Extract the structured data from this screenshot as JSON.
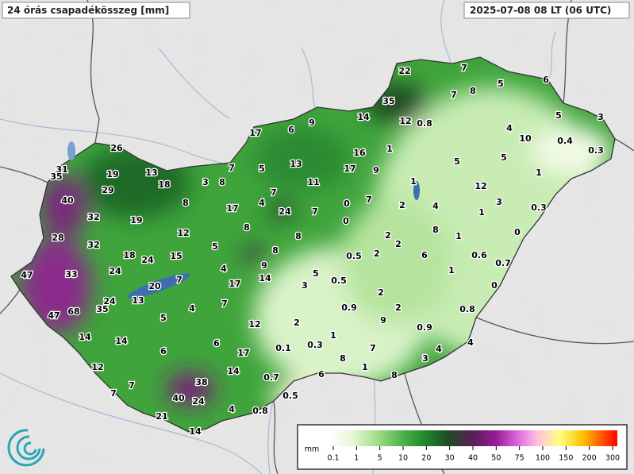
{
  "header": {
    "title": "24 órás csapadékösszeg [mm]",
    "timestamp": "2025-07-08 08 LT (06 UTC)"
  },
  "stations": [
    "22",
    "7",
    "5",
    "6",
    "35",
    "7",
    "8",
    "14",
    "12",
    "0.8",
    "5",
    "3",
    "17",
    "6",
    "9",
    "4",
    "10",
    "26",
    "16",
    "1",
    "0.4",
    "0.3",
    "31",
    "35",
    "19",
    "13",
    "7",
    "5",
    "13",
    "17",
    "9",
    "5",
    "5",
    "1",
    "29",
    "18",
    "3",
    "8",
    "11",
    "1",
    "12",
    "40",
    "8",
    "4",
    "7",
    "24",
    "17",
    "7",
    "0",
    "7",
    "2",
    "4",
    "3",
    "0.3",
    "32",
    "19",
    "0",
    "1",
    "28",
    "12",
    "8",
    "8",
    "2",
    "8",
    "1",
    "0",
    "32",
    "5",
    "2",
    "8",
    "18",
    "24",
    "15",
    "0.5",
    "2",
    "6",
    "0.6",
    "0.7",
    "47",
    "33",
    "24",
    "4",
    "9",
    "5",
    "1",
    "20",
    "7",
    "17",
    "14",
    "3",
    "0.5",
    "2",
    "0",
    "24",
    "13",
    "7",
    "47",
    "68",
    "35",
    "4",
    "0.9",
    "2",
    "0.8",
    "5",
    "2",
    "9",
    "14",
    "14",
    "12",
    "1",
    "0.9",
    "6",
    "6",
    "0.1",
    "0.3",
    "7",
    "4",
    "17",
    "8",
    "4",
    "3",
    "12",
    "14",
    "1",
    "8",
    "7",
    "38",
    "0.7",
    "6",
    "7",
    "40",
    "24",
    "0.5",
    "21",
    "4",
    "0.8",
    "14"
  ],
  "legend": {
    "unit": "mm",
    "ticks": [
      "0.1",
      "1",
      "5",
      "10",
      "20",
      "30",
      "40",
      "50",
      "75",
      "100",
      "150",
      "200",
      "300"
    ]
  }
}
